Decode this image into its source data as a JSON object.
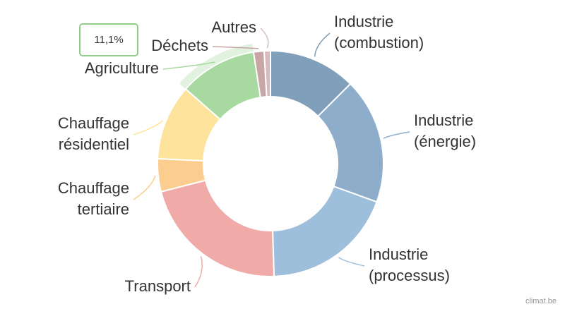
{
  "chart_data": {
    "type": "donut",
    "categories": [
      "Industrie\n(combustion)",
      "Industrie\n(énergie)",
      "Industrie\n(processus)",
      "Transport",
      "Chauffage\ntertiaire",
      "Chauffage\nrésidentiel",
      "Agriculture",
      "Déchets",
      "Autres"
    ],
    "values": [
      12.5,
      18,
      19,
      21.5,
      4.7,
      10.8,
      11.1,
      1.5,
      0.9
    ],
    "value_labels": [
      null,
      null,
      null,
      null,
      null,
      null,
      "11,1%",
      null,
      null
    ],
    "colors": [
      "#7f9fba",
      "#8eadcb",
      "#9dbfdc",
      "#f0aaa8",
      "#fbcd8f",
      "#fde39b",
      "#a8d9a0",
      "#c9a6a6",
      "#d8bcbc"
    ],
    "source": "climat.be"
  }
}
